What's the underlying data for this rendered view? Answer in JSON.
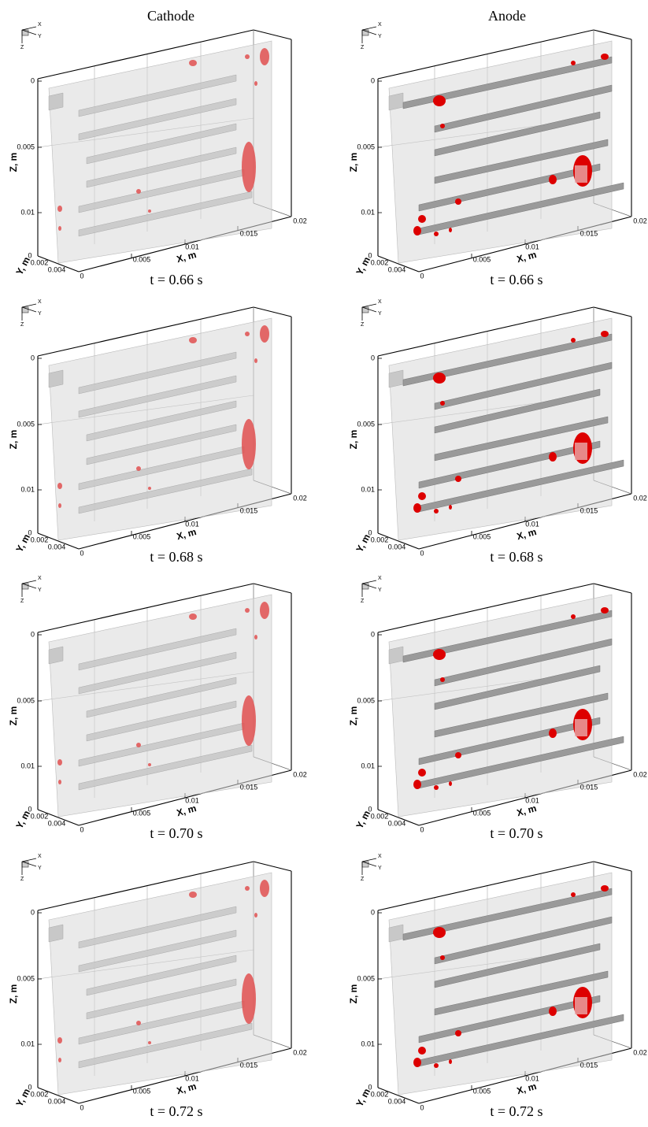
{
  "headers": [
    "Cathode",
    "Anode"
  ],
  "triad": {
    "x": "X",
    "y": "Y",
    "z": "Z"
  },
  "axes": {
    "x_label": "X, m",
    "y_label": "Y, m",
    "z_label": "Z, m",
    "x_ticks": [
      "0",
      "0.005",
      "0.01",
      "0.015",
      "0.02"
    ],
    "y_ticks": [
      "0",
      "0.002",
      "0.004"
    ],
    "z_ticks": [
      "0",
      "0.005",
      "0.01"
    ]
  },
  "rows": [
    {
      "captions": [
        "t = 0.66 s",
        "t = 0.66 s"
      ]
    },
    {
      "captions": [
        "t = 0.68 s",
        "t = 0.68 s"
      ]
    },
    {
      "captions": [
        "t = 0.70 s",
        "t = 0.70 s"
      ]
    },
    {
      "captions": [
        "t = 0.72 s",
        "t = 0.72 s"
      ]
    }
  ]
}
